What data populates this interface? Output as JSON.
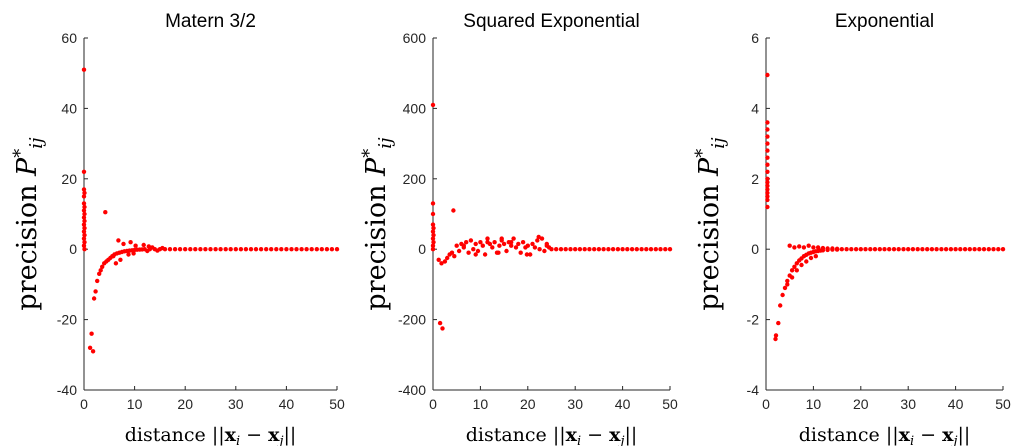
{
  "chart_data": [
    {
      "type": "scatter",
      "title": "Matern 3/2",
      "xlabel": "distance ||x_i − x_j||",
      "ylabel": "precision P*_ij",
      "xlim": [
        0,
        50
      ],
      "ylim": [
        -40,
        60
      ],
      "xticks": [
        "0",
        "10",
        "20",
        "30",
        "40",
        "50"
      ],
      "yticks": [
        "-40",
        "-20",
        "0",
        "20",
        "40",
        "60"
      ],
      "color": "#ff0000",
      "grid": false,
      "series": [
        {
          "x": [
            0,
            0,
            0,
            0,
            0,
            0,
            0,
            0,
            0,
            0,
            0,
            0.1,
            0.1,
            0.1,
            0.1,
            0.1,
            0.1,
            0.1,
            0.1,
            1.5,
            1.8,
            1.2,
            2.0,
            2.3,
            2.6,
            3.0,
            3.3,
            3.6,
            4.0,
            4.4,
            4.8,
            5.2,
            5.6,
            6.0,
            6.5,
            7.0,
            7.5,
            8.0,
            8.5,
            9.0,
            9.5,
            10.0,
            10.5,
            11.0,
            11.5,
            12.0,
            13.0,
            14.0,
            15.0,
            16.0,
            17.0,
            18.0,
            19.0,
            20.0,
            4.2,
            6.8,
            7.8,
            9.2,
            10.2,
            11.8,
            12.8,
            8.8,
            9.8,
            7.2,
            13.5,
            15.5,
            14.5,
            12.5,
            6.3,
            5.8,
            21.0,
            22.0,
            23.0,
            24.0,
            25.0,
            26.0,
            27.0,
            28.0,
            29.0,
            30.0,
            31.0,
            32.0,
            33.0,
            34.0,
            35.0,
            36.0,
            37.0,
            38.0,
            39.0,
            40.0,
            41.0,
            42.0,
            43.0,
            44.0,
            45.0,
            46.0,
            47.0,
            48.0,
            49.0,
            50.0
          ],
          "y": [
            51,
            22,
            17,
            15,
            13,
            11,
            9,
            7,
            5,
            3,
            1,
            16,
            12,
            10,
            8,
            6,
            4,
            2,
            0,
            -24,
            -29,
            -28,
            -14,
            -12,
            -9,
            -7,
            -6,
            -5,
            -4,
            -3.5,
            -3,
            -2.5,
            -2,
            -1.5,
            -1.2,
            -1,
            -0.8,
            -0.6,
            -0.5,
            -0.4,
            -0.3,
            -0.2,
            -0.15,
            -0.1,
            -0.05,
            0,
            0,
            0,
            0,
            0,
            0,
            0,
            0,
            0,
            10.5,
            2.5,
            1.5,
            2,
            1,
            1.2,
            0.8,
            -1.5,
            -1.2,
            -3,
            0.5,
            0.3,
            -0.4,
            -0.5,
            -4,
            -2,
            0,
            0,
            0,
            0,
            0,
            0,
            0,
            0,
            0,
            0,
            0,
            0,
            0,
            0,
            0,
            0,
            0,
            0,
            0,
            0,
            0,
            0,
            0,
            0,
            0,
            0,
            0,
            0,
            0,
            0
          ]
        }
      ]
    },
    {
      "type": "scatter",
      "title": "Squared Exponential",
      "xlabel": "distance ||x_i − x_j||",
      "ylabel": "precision P*_ij",
      "xlim": [
        0,
        50
      ],
      "ylim": [
        -400,
        600
      ],
      "xticks": [
        "0",
        "10",
        "20",
        "30",
        "40",
        "50"
      ],
      "yticks": [
        "-400",
        "-200",
        "0",
        "200",
        "400",
        "600"
      ],
      "color": "#ff0000",
      "grid": false,
      "series": [
        {
          "x": [
            0,
            0,
            0,
            0,
            0,
            0,
            0,
            0,
            0.1,
            0.1,
            0.1,
            1.5,
            2.0,
            1.2,
            1.8,
            2.5,
            3.0,
            3.5,
            4.0,
            4.5,
            5.0,
            5.5,
            6.0,
            6.5,
            7.0,
            7.5,
            8.0,
            8.5,
            9.0,
            9.5,
            10.0,
            10.5,
            11.0,
            11.5,
            12.0,
            12.5,
            13.0,
            13.5,
            14.0,
            14.5,
            15.0,
            15.5,
            16.0,
            16.5,
            17.0,
            17.5,
            18.0,
            18.5,
            19.0,
            19.5,
            20.0,
            20.5,
            21.0,
            21.5,
            22.0,
            22.5,
            23.0,
            23.5,
            24.0,
            24.5,
            25.0,
            4.3,
            11.5,
            16.5,
            22.3,
            9.0,
            13.8,
            19.8,
            6.5,
            14.5,
            24.0,
            26.0,
            27.0,
            28.0,
            29.0,
            30.0,
            31.0,
            32.0,
            33.0,
            34.0,
            35.0,
            36.0,
            37.0,
            38.0,
            39.0,
            40.0,
            41.0,
            42.0,
            43.0,
            44.0,
            45.0,
            46.0,
            47.0,
            48.0,
            49.0,
            50.0
          ],
          "y": [
            410,
            130,
            100,
            70,
            50,
            30,
            10,
            0,
            60,
            40,
            20,
            -210,
            -225,
            -30,
            -40,
            -35,
            -25,
            -15,
            -10,
            -20,
            10,
            -5,
            15,
            5,
            20,
            -10,
            25,
            0,
            15,
            -5,
            20,
            10,
            -15,
            30,
            15,
            5,
            20,
            -10,
            10,
            25,
            15,
            -5,
            20,
            10,
            30,
            5,
            15,
            -10,
            20,
            5,
            10,
            -15,
            15,
            5,
            25,
            0,
            30,
            -5,
            10,
            5,
            0,
            110,
            20,
            20,
            35,
            -15,
            -10,
            -15,
            10,
            30,
            15,
            0,
            0,
            0,
            0,
            0,
            0,
            0,
            0,
            0,
            0,
            0,
            0,
            0,
            0,
            0,
            0,
            0,
            0,
            0,
            0,
            0,
            0,
            0,
            0,
            0
          ]
        }
      ]
    },
    {
      "type": "scatter",
      "title": "Exponential",
      "xlabel": "distance ||x_i − x_j||",
      "ylabel": "precision P*_ij",
      "xlim": [
        0,
        50
      ],
      "ylim": [
        -4,
        6
      ],
      "xticks": [
        "0",
        "10",
        "20",
        "30",
        "40",
        "50"
      ],
      "yticks": [
        "-4",
        "-2",
        "0",
        "2",
        "4",
        "6"
      ],
      "color": "#ff0000",
      "grid": false,
      "series": [
        {
          "x": [
            0.3,
            0.3,
            0.3,
            0.3,
            0.3,
            0.3,
            0.3,
            0.3,
            0.3,
            0.3,
            0.3,
            0.3,
            0.3,
            0.3,
            0.3,
            0.3,
            0.3,
            2.0,
            2.1,
            2.6,
            3.0,
            3.5,
            4.0,
            4.5,
            5.0,
            5.5,
            6.0,
            6.5,
            7.0,
            7.5,
            8.0,
            8.5,
            9.0,
            9.5,
            10.0,
            10.5,
            11.0,
            11.5,
            12.0,
            13.0,
            14.0,
            15.0,
            16.0,
            17.0,
            18.0,
            19.0,
            20.0,
            5.0,
            6.0,
            7.0,
            8.0,
            9.0,
            10.0,
            11.0,
            12.0,
            13.0,
            14.0,
            15.0,
            4.5,
            5.5,
            6.5,
            7.5,
            8.5,
            9.5,
            10.5,
            21.0,
            22.0,
            23.0,
            24.0,
            25.0,
            26.0,
            27.0,
            28.0,
            29.0,
            30.0,
            31.0,
            32.0,
            33.0,
            34.0,
            35.0,
            36.0,
            37.0,
            38.0,
            39.0,
            40.0,
            41.0,
            42.0,
            43.0,
            44.0,
            45.0,
            46.0,
            47.0,
            48.0,
            49.0,
            50.0
          ],
          "y": [
            4.95,
            3.6,
            3.4,
            3.2,
            3.0,
            2.8,
            2.6,
            2.4,
            2.2,
            2.0,
            1.9,
            1.8,
            1.7,
            1.6,
            1.5,
            1.4,
            1.2,
            -2.55,
            -2.45,
            -2.1,
            -1.6,
            -1.3,
            -1.1,
            -0.9,
            -0.75,
            -0.6,
            -0.5,
            -0.4,
            -0.32,
            -0.26,
            -0.2,
            -0.16,
            -0.12,
            -0.1,
            -0.08,
            -0.06,
            -0.05,
            -0.04,
            -0.03,
            -0.02,
            -0.01,
            -0.01,
            0,
            0,
            0,
            0,
            0,
            0.1,
            0.05,
            0.08,
            0.05,
            0.1,
            0.05,
            0.05,
            0.03,
            0.02,
            0.02,
            0.01,
            -1.0,
            -0.8,
            -0.6,
            -0.45,
            -0.35,
            -0.25,
            -0.2,
            0,
            0,
            0,
            0,
            0,
            0,
            0,
            0,
            0,
            0,
            0,
            0,
            0,
            0,
            0,
            0,
            0,
            0,
            0,
            0,
            0,
            0,
            0,
            0,
            0,
            0,
            0,
            0,
            0,
            0
          ]
        }
      ]
    }
  ]
}
